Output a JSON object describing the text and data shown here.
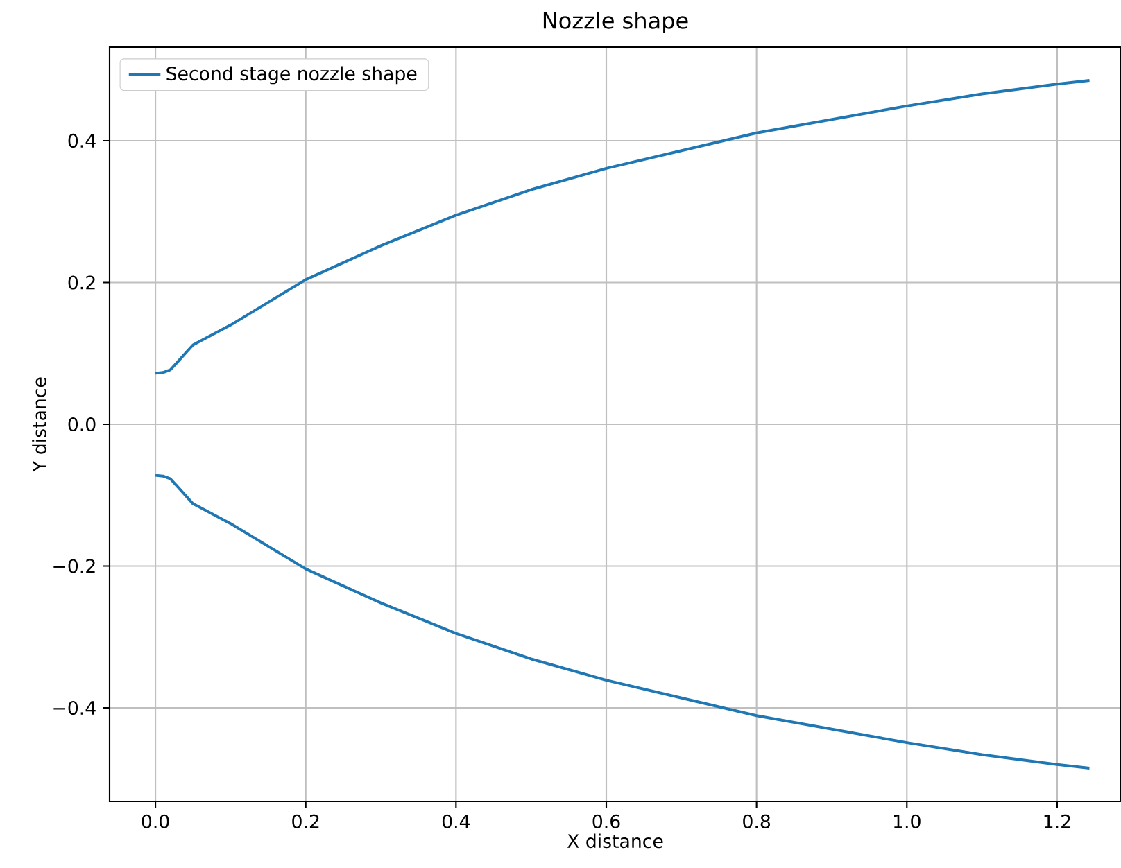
{
  "chart_data": {
    "type": "line",
    "title": "Nozzle shape",
    "xlabel": "X distance",
    "ylabel": "Y distance",
    "series": [
      {
        "name": "Second stage nozzle shape",
        "color": "#1f77b4",
        "x": [
          0,
          0.01,
          0.02,
          0.05,
          0.1,
          0.2,
          0.3,
          0.4,
          0.5,
          0.6,
          0.7,
          0.8,
          0.9,
          1.0,
          1.1,
          1.2,
          1.243
        ],
        "values": [
          0.072,
          0.073,
          0.077,
          0.112,
          0.14,
          0.204,
          0.252,
          0.295,
          0.331,
          0.361,
          0.386,
          0.411,
          0.43,
          0.449,
          0.466,
          0.48,
          0.485
        ]
      },
      {
        "color": "#1f77b4",
        "x": [
          0,
          0.01,
          0.02,
          0.05,
          0.1,
          0.2,
          0.3,
          0.4,
          0.5,
          0.6,
          0.7,
          0.8,
          0.9,
          1.0,
          1.1,
          1.2,
          1.243
        ],
        "values": [
          -0.072,
          -0.073,
          -0.077,
          -0.112,
          -0.14,
          -0.204,
          -0.252,
          -0.295,
          -0.331,
          -0.361,
          -0.386,
          -0.411,
          -0.43,
          -0.449,
          -0.466,
          -0.48,
          -0.485
        ]
      }
    ],
    "xlim": [
      -0.061,
      1.285
    ],
    "ylim": [
      -0.532,
      0.532
    ],
    "xticks": [
      {
        "value": 0,
        "label": "0.0"
      },
      {
        "value": 0.2,
        "label": "0.2"
      },
      {
        "value": 0.4,
        "label": "0.4"
      },
      {
        "value": 0.6,
        "label": "0.6"
      },
      {
        "value": 0.8,
        "label": "0.8"
      },
      {
        "value": 1.0,
        "label": "1.0"
      },
      {
        "value": 1.2,
        "label": "1.2"
      }
    ],
    "yticks": [
      {
        "value": -0.4,
        "label": "−0.4"
      },
      {
        "value": -0.2,
        "label": "−0.2"
      },
      {
        "value": 0,
        "label": "0.0"
      },
      {
        "value": 0.2,
        "label": "0.2"
      },
      {
        "value": 0.4,
        "label": "0.4"
      }
    ],
    "grid": true,
    "legend": "top left",
    "marker": "none",
    "line_style": "solid"
  }
}
